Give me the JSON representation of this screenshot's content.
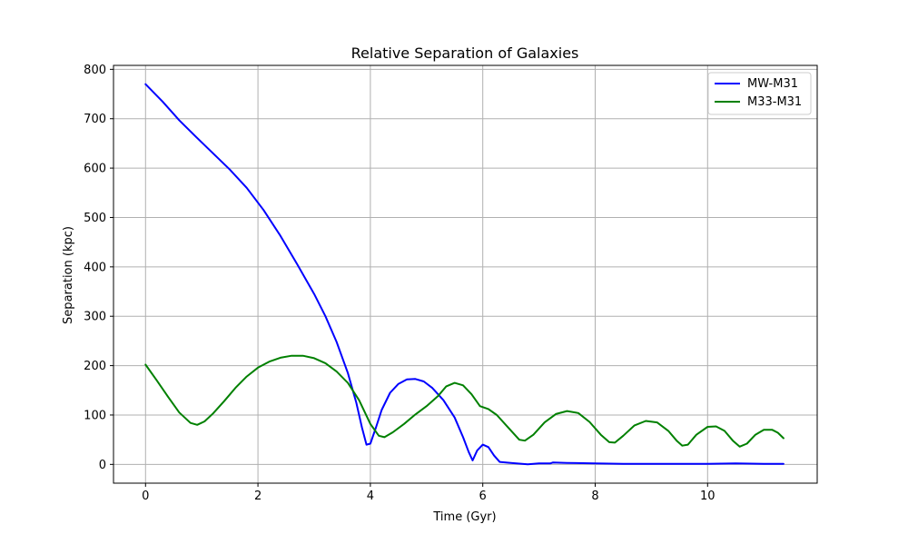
{
  "chart_data": {
    "type": "line",
    "title": "Relative Separation of Galaxies",
    "xlabel": "Time (Gyr)",
    "ylabel": "Separation (kpc)",
    "xlim": [
      -0.57,
      11.95
    ],
    "ylim": [
      -38,
      808
    ],
    "xticks": [
      0,
      2,
      4,
      6,
      8,
      10
    ],
    "yticks": [
      0,
      100,
      200,
      300,
      400,
      500,
      600,
      700,
      800
    ],
    "grid": true,
    "legend_position": "top-right",
    "series": [
      {
        "name": "MW-M31",
        "color": "#0000ff",
        "points": [
          [
            0,
            770
          ],
          [
            0.3,
            735
          ],
          [
            0.6,
            697
          ],
          [
            0.9,
            663
          ],
          [
            1.2,
            630
          ],
          [
            1.5,
            597
          ],
          [
            1.8,
            560
          ],
          [
            2.1,
            515
          ],
          [
            2.4,
            463
          ],
          [
            2.7,
            405
          ],
          [
            3.0,
            345
          ],
          [
            3.2,
            300
          ],
          [
            3.4,
            248
          ],
          [
            3.6,
            185
          ],
          [
            3.75,
            125
          ],
          [
            3.85,
            75
          ],
          [
            3.93,
            40
          ],
          [
            4.0,
            42
          ],
          [
            4.1,
            75
          ],
          [
            4.2,
            110
          ],
          [
            4.35,
            145
          ],
          [
            4.5,
            163
          ],
          [
            4.65,
            172
          ],
          [
            4.8,
            173
          ],
          [
            4.95,
            168
          ],
          [
            5.1,
            155
          ],
          [
            5.3,
            130
          ],
          [
            5.5,
            95
          ],
          [
            5.65,
            55
          ],
          [
            5.75,
            25
          ],
          [
            5.82,
            8
          ],
          [
            5.9,
            28
          ],
          [
            6.0,
            40
          ],
          [
            6.1,
            35
          ],
          [
            6.2,
            18
          ],
          [
            6.3,
            5
          ],
          [
            6.5,
            3
          ],
          [
            6.8,
            0
          ],
          [
            7.0,
            2
          ],
          [
            7.2,
            2
          ],
          [
            7.25,
            4
          ],
          [
            7.5,
            3
          ],
          [
            8.0,
            2
          ],
          [
            8.5,
            1
          ],
          [
            9.0,
            1
          ],
          [
            9.5,
            1
          ],
          [
            10.0,
            1
          ],
          [
            10.5,
            2
          ],
          [
            11.0,
            1
          ],
          [
            11.35,
            1
          ]
        ]
      },
      {
        "name": "M33-M31",
        "color": "#008000",
        "points": [
          [
            0,
            202
          ],
          [
            0.2,
            170
          ],
          [
            0.4,
            137
          ],
          [
            0.6,
            105
          ],
          [
            0.8,
            84
          ],
          [
            0.92,
            80
          ],
          [
            1.05,
            87
          ],
          [
            1.2,
            103
          ],
          [
            1.4,
            128
          ],
          [
            1.6,
            155
          ],
          [
            1.8,
            178
          ],
          [
            2.0,
            196
          ],
          [
            2.2,
            208
          ],
          [
            2.4,
            216
          ],
          [
            2.6,
            220
          ],
          [
            2.8,
            220
          ],
          [
            3.0,
            215
          ],
          [
            3.2,
            205
          ],
          [
            3.4,
            188
          ],
          [
            3.6,
            165
          ],
          [
            3.8,
            130
          ],
          [
            4.0,
            82
          ],
          [
            4.15,
            58
          ],
          [
            4.25,
            55
          ],
          [
            4.4,
            65
          ],
          [
            4.6,
            82
          ],
          [
            4.8,
            101
          ],
          [
            5.0,
            118
          ],
          [
            5.2,
            138
          ],
          [
            5.35,
            158
          ],
          [
            5.5,
            165
          ],
          [
            5.65,
            160
          ],
          [
            5.8,
            142
          ],
          [
            5.95,
            118
          ],
          [
            6.1,
            112
          ],
          [
            6.25,
            100
          ],
          [
            6.45,
            75
          ],
          [
            6.65,
            50
          ],
          [
            6.75,
            48
          ],
          [
            6.9,
            60
          ],
          [
            7.1,
            85
          ],
          [
            7.3,
            102
          ],
          [
            7.5,
            108
          ],
          [
            7.7,
            104
          ],
          [
            7.9,
            86
          ],
          [
            8.1,
            60
          ],
          [
            8.25,
            45
          ],
          [
            8.35,
            44
          ],
          [
            8.5,
            58
          ],
          [
            8.7,
            79
          ],
          [
            8.9,
            88
          ],
          [
            9.1,
            85
          ],
          [
            9.3,
            68
          ],
          [
            9.45,
            48
          ],
          [
            9.55,
            38
          ],
          [
            9.65,
            40
          ],
          [
            9.8,
            60
          ],
          [
            10.0,
            76
          ],
          [
            10.15,
            77
          ],
          [
            10.3,
            68
          ],
          [
            10.45,
            48
          ],
          [
            10.57,
            36
          ],
          [
            10.7,
            42
          ],
          [
            10.85,
            60
          ],
          [
            11.0,
            70
          ],
          [
            11.15,
            70
          ],
          [
            11.25,
            64
          ],
          [
            11.35,
            53
          ]
        ]
      }
    ]
  }
}
